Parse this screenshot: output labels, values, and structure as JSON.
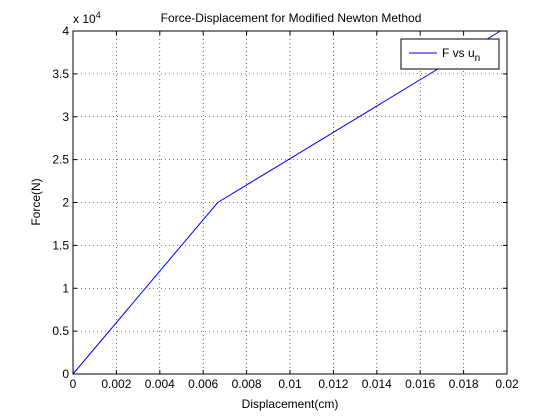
{
  "chart_data": {
    "type": "line",
    "title": "Force-Displacement for Modified Newton Method",
    "xlabel": "Displacement(cm)",
    "ylabel": "Force(N)",
    "xlim": [
      0,
      0.02
    ],
    "ylim": [
      0,
      40000
    ],
    "y_exponent_label": "x 10",
    "y_exponent_power": "4",
    "grid": true,
    "grid_style": "dotted",
    "legend_position": "top-right",
    "x_ticks": [
      0,
      0.002,
      0.004,
      0.006,
      0.008,
      0.01,
      0.012,
      0.014,
      0.016,
      0.018,
      0.02
    ],
    "x_tick_labels": [
      "0",
      "0.002",
      "0.004",
      "0.006",
      "0.008",
      "0.01",
      "0.012",
      "0.014",
      "0.016",
      "0.018",
      "0.02"
    ],
    "y_ticks": [
      0,
      5000,
      10000,
      15000,
      20000,
      25000,
      30000,
      35000,
      40000
    ],
    "y_tick_labels": [
      "0",
      "0.5",
      "1",
      "1.5",
      "2",
      "2.5",
      "3",
      "3.5",
      "4"
    ],
    "series": [
      {
        "name": "F vs u",
        "name_subscript": "n",
        "color": "#0000ff",
        "x": [
          0,
          0.00667,
          0.0197
        ],
        "y": [
          0,
          20000,
          40000
        ]
      }
    ]
  }
}
